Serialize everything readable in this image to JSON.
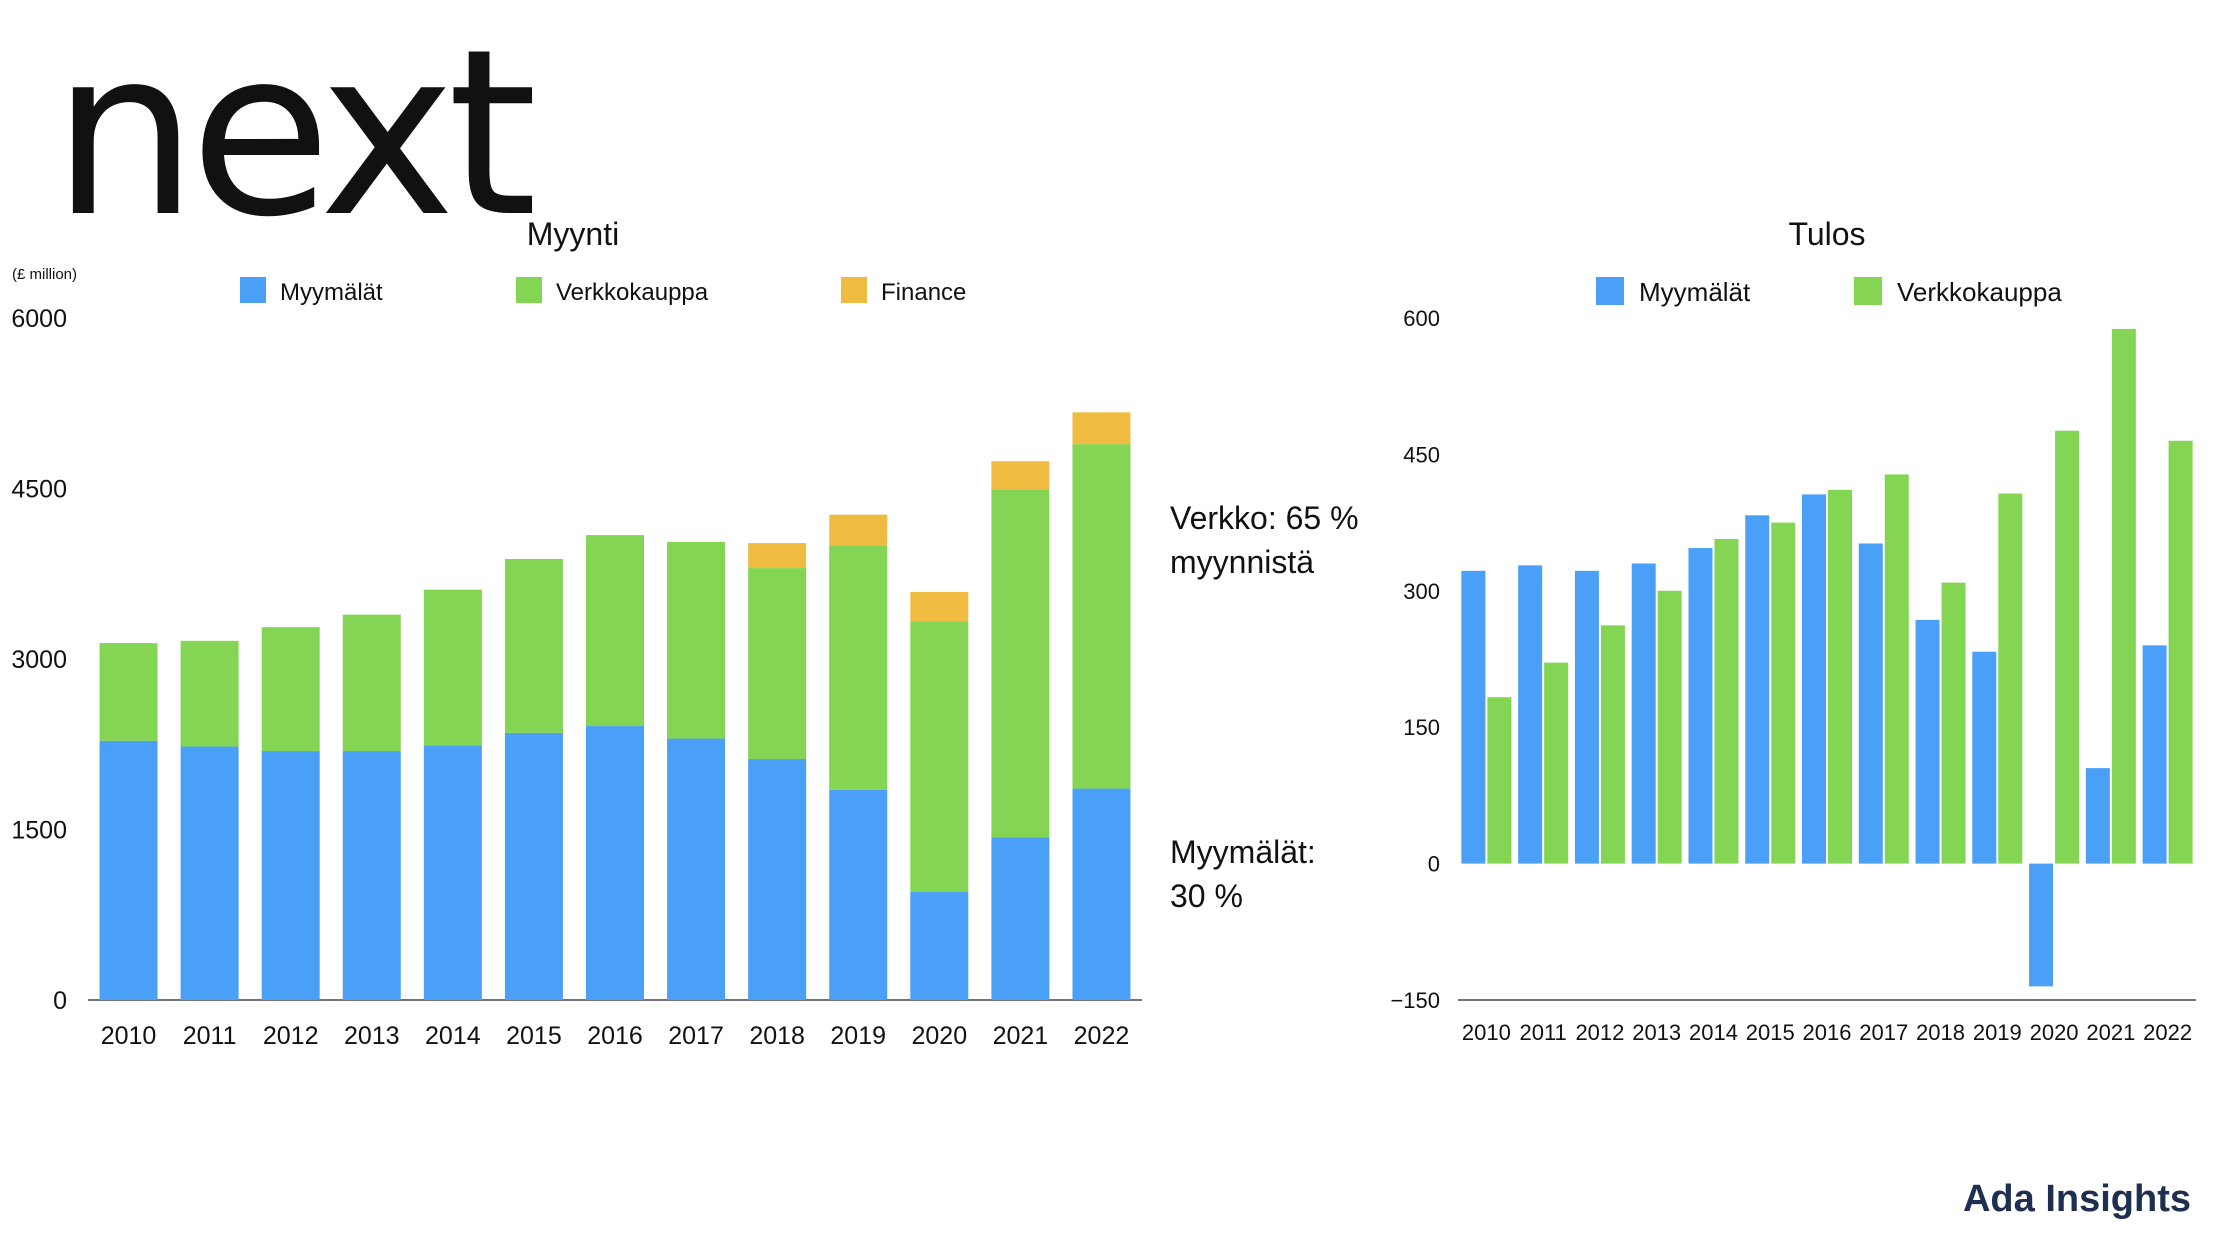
{
  "logo": {
    "text": "next"
  },
  "brand": {
    "text": "Ada Insights"
  },
  "annotations": {
    "online_line1": "Verkko: 65 %",
    "online_line2": "myynnistä",
    "stores_line1": "Myymälät:",
    "stores_line2": "30 %"
  },
  "chart_data": [
    {
      "type": "bar",
      "stacked": true,
      "title": "Myynti",
      "unit_label": "(£ million)",
      "categories": [
        "2010",
        "2011",
        "2012",
        "2013",
        "2014",
        "2015",
        "2016",
        "2017",
        "2018",
        "2019",
        "2020",
        "2021",
        "2022"
      ],
      "yticks": [
        0,
        1500,
        3000,
        4500,
        6000
      ],
      "ylim": [
        0,
        6000
      ],
      "legend_position": "top",
      "grid": false,
      "series": [
        {
          "name": "Myymälät",
          "color": "#4aa0f7",
          "values": [
            2280,
            2230,
            2190,
            2190,
            2240,
            2350,
            2410,
            2300,
            2120,
            1850,
            950,
            1430,
            1860
          ]
        },
        {
          "name": "Verkkokauppa",
          "color": "#84d553",
          "values": [
            860,
            930,
            1090,
            1200,
            1370,
            1530,
            1680,
            1730,
            1680,
            2150,
            2380,
            3060,
            3030
          ]
        },
        {
          "name": "Finance",
          "color": "#f0bb41",
          "values": [
            0,
            0,
            0,
            0,
            0,
            0,
            0,
            0,
            220,
            270,
            260,
            250,
            280
          ]
        }
      ]
    },
    {
      "type": "bar",
      "stacked": false,
      "title": "Tulos",
      "categories": [
        "2010",
        "2011",
        "2012",
        "2013",
        "2014",
        "2015",
        "2016",
        "2017",
        "2018",
        "2019",
        "2020",
        "2021",
        "2022"
      ],
      "yticks": [
        -150,
        0,
        150,
        300,
        450,
        600
      ],
      "ylim": [
        -150,
        600
      ],
      "legend_position": "top",
      "grid": false,
      "series": [
        {
          "name": "Myymälät",
          "color": "#4aa0f7",
          "values": [
            322,
            328,
            322,
            330,
            347,
            383,
            406,
            352,
            268,
            233,
            -135,
            105,
            240
          ]
        },
        {
          "name": "Verkkokauppa",
          "color": "#84d553",
          "values": [
            183,
            221,
            262,
            300,
            357,
            375,
            411,
            428,
            309,
            407,
            476,
            588,
            465
          ]
        }
      ]
    }
  ]
}
